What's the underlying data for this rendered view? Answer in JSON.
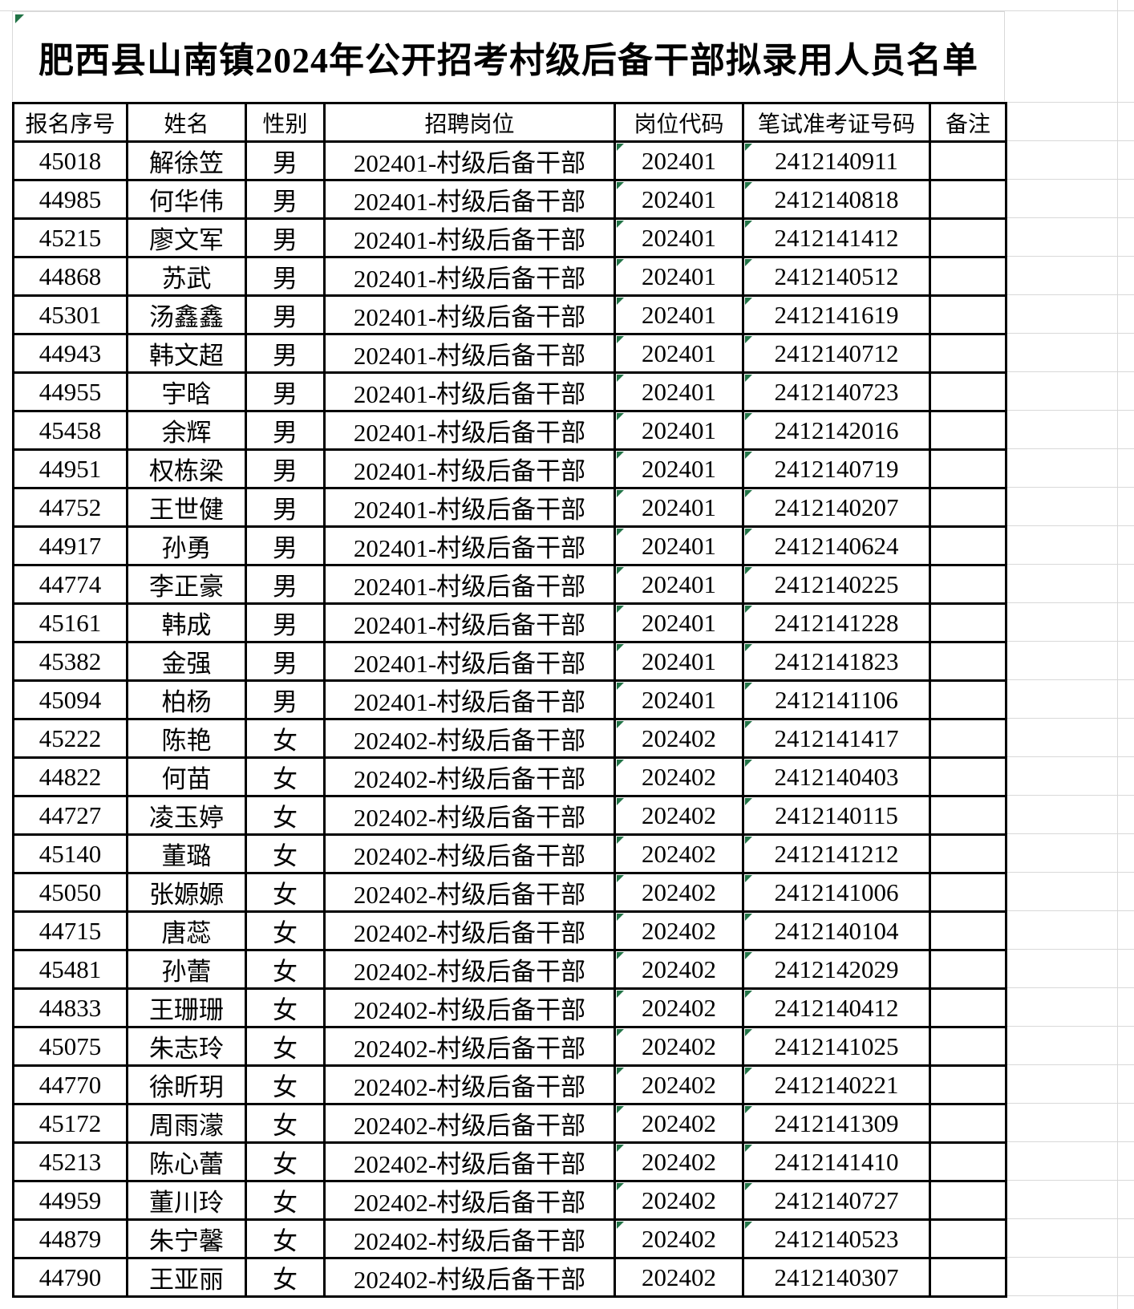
{
  "title": "肥西县山南镇2024年公开招考村级后备干部拟录用人员名单",
  "colors": {
    "triangle_green": "#217346",
    "gridline_gray": "#d9d9d9",
    "table_border": "#000000"
  },
  "table": {
    "headers": [
      "报名序号",
      "姓名",
      "性别",
      "招聘岗位",
      "岗位代码",
      "笔试准考证号码",
      "备注"
    ],
    "rows": [
      {
        "no": "45018",
        "name": "解徐笠",
        "gender": "男",
        "position": "202401-村级后备干部",
        "code": "202401",
        "ticket": "2412140911",
        "remark": "",
        "green": true
      },
      {
        "no": "44985",
        "name": "何华伟",
        "gender": "男",
        "position": "202401-村级后备干部",
        "code": "202401",
        "ticket": "2412140818",
        "remark": "",
        "green": true
      },
      {
        "no": "45215",
        "name": "廖文军",
        "gender": "男",
        "position": "202401-村级后备干部",
        "code": "202401",
        "ticket": "2412141412",
        "remark": "",
        "green": true
      },
      {
        "no": "44868",
        "name": "苏武",
        "gender": "男",
        "position": "202401-村级后备干部",
        "code": "202401",
        "ticket": "2412140512",
        "remark": "",
        "green": true
      },
      {
        "no": "45301",
        "name": "汤鑫鑫",
        "gender": "男",
        "position": "202401-村级后备干部",
        "code": "202401",
        "ticket": "2412141619",
        "remark": "",
        "green": true
      },
      {
        "no": "44943",
        "name": "韩文超",
        "gender": "男",
        "position": "202401-村级后备干部",
        "code": "202401",
        "ticket": "2412140712",
        "remark": "",
        "green": true
      },
      {
        "no": "44955",
        "name": "宇晗",
        "gender": "男",
        "position": "202401-村级后备干部",
        "code": "202401",
        "ticket": "2412140723",
        "remark": "",
        "green": true
      },
      {
        "no": "45458",
        "name": "余辉",
        "gender": "男",
        "position": "202401-村级后备干部",
        "code": "202401",
        "ticket": "2412142016",
        "remark": "",
        "green": true
      },
      {
        "no": "44951",
        "name": "权栋梁",
        "gender": "男",
        "position": "202401-村级后备干部",
        "code": "202401",
        "ticket": "2412140719",
        "remark": "",
        "green": true
      },
      {
        "no": "44752",
        "name": "王世健",
        "gender": "男",
        "position": "202401-村级后备干部",
        "code": "202401",
        "ticket": "2412140207",
        "remark": "",
        "green": true
      },
      {
        "no": "44917",
        "name": "孙勇",
        "gender": "男",
        "position": "202401-村级后备干部",
        "code": "202401",
        "ticket": "2412140624",
        "remark": "",
        "green": true
      },
      {
        "no": "44774",
        "name": "李正豪",
        "gender": "男",
        "position": "202401-村级后备干部",
        "code": "202401",
        "ticket": "2412140225",
        "remark": "",
        "green": true
      },
      {
        "no": "45161",
        "name": "韩成",
        "gender": "男",
        "position": "202401-村级后备干部",
        "code": "202401",
        "ticket": "2412141228",
        "remark": "",
        "green": true
      },
      {
        "no": "45382",
        "name": "金强",
        "gender": "男",
        "position": "202401-村级后备干部",
        "code": "202401",
        "ticket": "2412141823",
        "remark": "",
        "green": true
      },
      {
        "no": "45094",
        "name": "柏杨",
        "gender": "男",
        "position": "202401-村级后备干部",
        "code": "202401",
        "ticket": "2412141106",
        "remark": "",
        "green": true
      },
      {
        "no": "45222",
        "name": "陈艳",
        "gender": "女",
        "position": "202402-村级后备干部",
        "code": "202402",
        "ticket": "2412141417",
        "remark": "",
        "green": true
      },
      {
        "no": "44822",
        "name": "何苗",
        "gender": "女",
        "position": "202402-村级后备干部",
        "code": "202402",
        "ticket": "2412140403",
        "remark": "",
        "green": true
      },
      {
        "no": "44727",
        "name": "凌玉婷",
        "gender": "女",
        "position": "202402-村级后备干部",
        "code": "202402",
        "ticket": "2412140115",
        "remark": "",
        "green": true
      },
      {
        "no": "45140",
        "name": "董璐",
        "gender": "女",
        "position": "202402-村级后备干部",
        "code": "202402",
        "ticket": "2412141212",
        "remark": "",
        "green": true
      },
      {
        "no": "45050",
        "name": "张嫄嫄",
        "gender": "女",
        "position": "202402-村级后备干部",
        "code": "202402",
        "ticket": "2412141006",
        "remark": "",
        "green": true
      },
      {
        "no": "44715",
        "name": "唐蕊",
        "gender": "女",
        "position": "202402-村级后备干部",
        "code": "202402",
        "ticket": "2412140104",
        "remark": "",
        "green": true
      },
      {
        "no": "45481",
        "name": "孙蕾",
        "gender": "女",
        "position": "202402-村级后备干部",
        "code": "202402",
        "ticket": "2412142029",
        "remark": "",
        "green": true
      },
      {
        "no": "44833",
        "name": "王珊珊",
        "gender": "女",
        "position": "202402-村级后备干部",
        "code": "202402",
        "ticket": "2412140412",
        "remark": "",
        "green": true
      },
      {
        "no": "45075",
        "name": "朱志玲",
        "gender": "女",
        "position": "202402-村级后备干部",
        "code": "202402",
        "ticket": "2412141025",
        "remark": "",
        "green": true
      },
      {
        "no": "44770",
        "name": "徐昕玥",
        "gender": "女",
        "position": "202402-村级后备干部",
        "code": "202402",
        "ticket": "2412140221",
        "remark": "",
        "green": true
      },
      {
        "no": "45172",
        "name": "周雨濛",
        "gender": "女",
        "position": "202402-村级后备干部",
        "code": "202402",
        "ticket": "2412141309",
        "remark": "",
        "green": true
      },
      {
        "no": "45213",
        "name": "陈心蕾",
        "gender": "女",
        "position": "202402-村级后备干部",
        "code": "202402",
        "ticket": "2412141410",
        "remark": "",
        "green": true
      },
      {
        "no": "44959",
        "name": "董川玲",
        "gender": "女",
        "position": "202402-村级后备干部",
        "code": "202402",
        "ticket": "2412140727",
        "remark": "",
        "green": true
      },
      {
        "no": "44879",
        "name": "朱宁馨",
        "gender": "女",
        "position": "202402-村级后备干部",
        "code": "202402",
        "ticket": "2412140523",
        "remark": "",
        "green": true
      },
      {
        "no": "44790",
        "name": "王亚丽",
        "gender": "女",
        "position": "202402-村级后备干部",
        "code": "202402",
        "ticket": "2412140307",
        "remark": "",
        "green": false
      }
    ]
  }
}
